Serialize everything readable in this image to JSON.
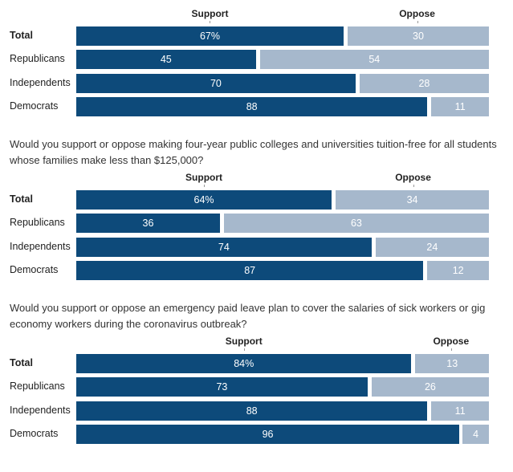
{
  "chart_data": [
    {
      "type": "bar",
      "question": "",
      "support_label": "Support",
      "oppose_label": "Oppose",
      "rows": [
        {
          "label": "Total",
          "support": 67,
          "oppose": 30,
          "support_text": "67%",
          "oppose_text": "30",
          "bold": true
        },
        {
          "label": "Republicans",
          "support": 45,
          "oppose": 54,
          "support_text": "45",
          "oppose_text": "54",
          "bold": false
        },
        {
          "label": "Independents",
          "support": 70,
          "oppose": 28,
          "support_text": "70",
          "oppose_text": "28",
          "bold": false
        },
        {
          "label": "Democrats",
          "support": 88,
          "oppose": 11,
          "support_text": "88",
          "oppose_text": "11",
          "bold": false
        }
      ]
    },
    {
      "type": "bar",
      "question": "Would you support or oppose making four-year public colleges and universities tuition-free for all students whose families make less than $125,000?",
      "support_label": "Support",
      "oppose_label": "Oppose",
      "rows": [
        {
          "label": "Total",
          "support": 64,
          "oppose": 34,
          "support_text": "64%",
          "oppose_text": "34",
          "bold": true
        },
        {
          "label": "Republicans",
          "support": 36,
          "oppose": 63,
          "support_text": "36",
          "oppose_text": "63",
          "bold": false
        },
        {
          "label": "Independents",
          "support": 74,
          "oppose": 24,
          "support_text": "74",
          "oppose_text": "24",
          "bold": false
        },
        {
          "label": "Democrats",
          "support": 87,
          "oppose": 12,
          "support_text": "87",
          "oppose_text": "12",
          "bold": false
        }
      ]
    },
    {
      "type": "bar",
      "question": "Would you support or oppose an emergency paid leave plan to cover the salaries of sick workers or gig economy workers during the coronavirus outbreak?",
      "support_label": "Support",
      "oppose_label": "Oppose",
      "rows": [
        {
          "label": "Total",
          "support": 84,
          "oppose": 13,
          "support_text": "84%",
          "oppose_text": "13",
          "bold": true
        },
        {
          "label": "Republicans",
          "support": 73,
          "oppose": 26,
          "support_text": "73",
          "oppose_text": "26",
          "bold": false
        },
        {
          "label": "Independents",
          "support": 88,
          "oppose": 11,
          "support_text": "88",
          "oppose_text": "11",
          "bold": false
        },
        {
          "label": "Democrats",
          "support": 96,
          "oppose": 4,
          "support_text": "96",
          "oppose_text": "4",
          "bold": false
        }
      ]
    }
  ],
  "colors": {
    "support": "#0d4a7a",
    "oppose": "#a6b8cc"
  }
}
